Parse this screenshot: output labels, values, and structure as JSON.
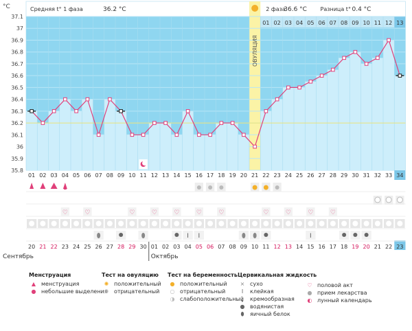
{
  "header": {
    "unit": "°C",
    "phase1_label": "Средняя t° 1 фаза",
    "phase1_value": "36.2 °C",
    "ovulation_label": "ОВУЛЯЦИЯ",
    "phase2_label": "2 фаза",
    "phase2_value": "36.6 °C",
    "diff_label": "Разница t°",
    "diff_value": "0.4 °C"
  },
  "months": [
    "Сентябрь",
    "Октябрь"
  ],
  "colors": {
    "chart_bg": "#8fd6f0",
    "bar": "#cdeefb",
    "line": "#e0407a",
    "ovulation": "#fbf3a6",
    "today": "#7cc7e8"
  },
  "chart_data": {
    "type": "line",
    "ylabel": "°C",
    "ylim": [
      35.8,
      37.1
    ],
    "y_ticks": [
      "35.8",
      "35.9",
      "36",
      "36.1",
      "36.2",
      "36.3",
      "36.4",
      "36.5",
      "36.6",
      "36.7",
      "36.8",
      "36.9",
      "37",
      "37.1"
    ],
    "cycle_days": [
      "01",
      "02",
      "03",
      "04",
      "05",
      "06",
      "07",
      "08",
      "09",
      "10",
      "11",
      "12",
      "13",
      "14",
      "15",
      "16",
      "17",
      "18",
      "19",
      "20",
      "21",
      "22",
      "23",
      "24",
      "25",
      "26",
      "27",
      "28",
      "29",
      "30",
      "31",
      "32",
      "33",
      "34"
    ],
    "dates": [
      "20",
      "21",
      "22",
      "23",
      "24",
      "25",
      "26",
      "27",
      "28",
      "29",
      "30",
      "01",
      "02",
      "03",
      "04",
      "05",
      "06",
      "07",
      "08",
      "09",
      "10",
      "11",
      "12",
      "13",
      "14",
      "15",
      "16",
      "17",
      "18",
      "19",
      "20",
      "21",
      "22",
      "23"
    ],
    "weekend_days": [
      2,
      3,
      9,
      10,
      16,
      17,
      23,
      24,
      30,
      31
    ],
    "values": [
      36.3,
      36.2,
      36.3,
      36.4,
      36.3,
      36.4,
      36.1,
      36.4,
      36.3,
      36.1,
      36.1,
      36.2,
      36.2,
      36.1,
      36.3,
      36.1,
      36.1,
      36.2,
      36.2,
      36.1,
      36.0,
      36.3,
      36.4,
      36.5,
      36.5,
      36.55,
      36.6,
      36.65,
      36.75,
      36.8,
      36.7,
      36.75,
      36.9,
      36.6
    ],
    "excluded_points": [
      0,
      8,
      33
    ],
    "ovulation_day": 21,
    "phase2_days": [
      "01",
      "02",
      "03",
      "04",
      "05",
      "06",
      "07",
      "08",
      "09",
      "10",
      "11",
      "12",
      "13"
    ],
    "coverline": 36.2
  },
  "rows": {
    "menstruation": [
      1,
      2,
      3,
      1,
      0
    ],
    "pink_drop_days": [
      1,
      2,
      3,
      4
    ],
    "ovulation_test_gray": [
      16,
      17,
      18
    ],
    "ovulation_test_pos": [
      21,
      22
    ],
    "ovulation_test_neg": [
      23
    ],
    "sex_days": [
      4,
      6,
      10,
      12,
      14,
      16,
      18,
      22,
      24,
      26,
      28
    ],
    "pill_days": [
      32,
      34
    ],
    "pill_half_days": [
      33
    ],
    "medicine_days": [
      1,
      2,
      3,
      4,
      5,
      6,
      7,
      8,
      9,
      10,
      11,
      12,
      13,
      14,
      15,
      16,
      17,
      18,
      19,
      20,
      21,
      22,
      23,
      24,
      25,
      26,
      27,
      28,
      29,
      30,
      31,
      32,
      33,
      34
    ],
    "mucus": {
      "7": "drop",
      "9": "watery",
      "11": "drop",
      "14": "watery",
      "15": "sticky",
      "16": "sticky",
      "20": "drop",
      "21": "drop",
      "22": "watery",
      "26": "sticky",
      "29": "watery",
      "30": "watery",
      "31": "watery"
    },
    "moon_day": 11
  },
  "legend": {
    "menstruation": {
      "title": "Менструация",
      "items": [
        "менструация",
        "небольшие выделения"
      ]
    },
    "ovulation_test": {
      "title": "Тест на овуляцию",
      "items": [
        "положительный",
        "отрицательный"
      ]
    },
    "pregnancy_test": {
      "title": "Тест на беременность",
      "items": [
        "положительный",
        "отрицательный",
        "слабоположительный"
      ]
    },
    "cervical": {
      "title": "Цервикальная жидкость",
      "items": [
        "сухо",
        "клейкая",
        "кремообразная",
        "водянистая",
        "яичный белок"
      ]
    },
    "other": {
      "items": [
        "половой акт",
        "прием лекарства",
        "лунный календарь"
      ]
    }
  }
}
